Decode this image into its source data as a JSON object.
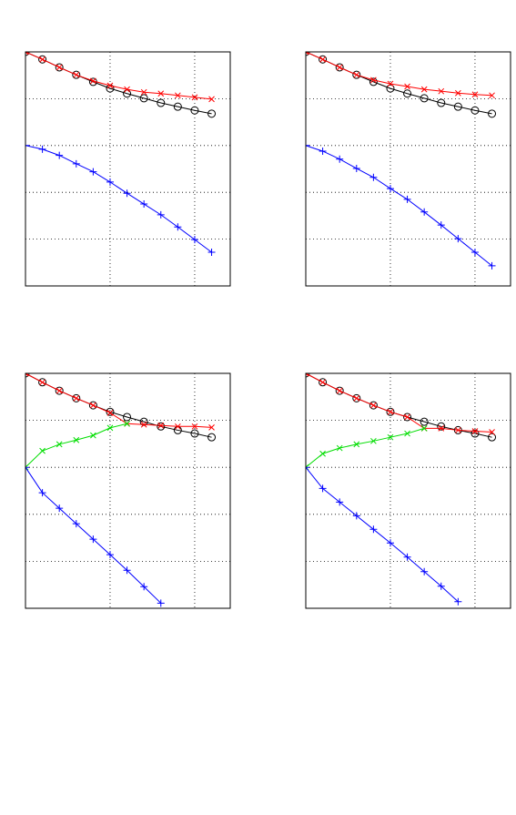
{
  "chart_data": [
    {
      "type": "line",
      "x": [
        0,
        1,
        2,
        3,
        4,
        5,
        6,
        7,
        8,
        9,
        10,
        11
      ],
      "xlim": [
        0,
        12.1
      ],
      "ylim": [
        -3,
        2
      ],
      "xticks": [
        5,
        10
      ],
      "yticks": [
        -2,
        -1,
        0,
        1
      ],
      "grid": true,
      "series": [
        {
          "color": "#000000",
          "marker": "o",
          "values": [
            2,
            1.84,
            1.67,
            1.51,
            1.36,
            1.22,
            1.11,
            1.01,
            0.91,
            0.83,
            0.75,
            0.68
          ]
        },
        {
          "color": "#ff0000",
          "marker": "x",
          "values": [
            2,
            1.84,
            1.67,
            1.51,
            1.38,
            1.28,
            1.2,
            1.14,
            1.11,
            1.07,
            1.03,
            0.99
          ]
        },
        {
          "color": "#0000ff",
          "marker": "+",
          "values": [
            0,
            -0.08,
            -0.21,
            -0.39,
            -0.56,
            -0.78,
            -1.02,
            -1.25,
            -1.48,
            -1.74,
            -2.01,
            -2.28
          ]
        }
      ]
    },
    {
      "type": "line",
      "x": [
        0,
        1,
        2,
        3,
        4,
        5,
        6,
        7,
        8,
        9,
        10,
        11
      ],
      "xlim": [
        0,
        12.1
      ],
      "ylim": [
        -3,
        2
      ],
      "xticks": [
        5,
        10
      ],
      "yticks": [
        -2,
        -1,
        0,
        1
      ],
      "grid": true,
      "series": [
        {
          "color": "#000000",
          "marker": "o",
          "values": [
            2,
            1.84,
            1.67,
            1.51,
            1.36,
            1.22,
            1.11,
            1.01,
            0.91,
            0.83,
            0.75,
            0.68
          ]
        },
        {
          "color": "#ff0000",
          "marker": "x",
          "values": [
            2,
            1.84,
            1.67,
            1.51,
            1.4,
            1.32,
            1.26,
            1.2,
            1.16,
            1.12,
            1.09,
            1.07
          ]
        },
        {
          "color": "#0000ff",
          "marker": "+",
          "values": [
            0,
            -0.12,
            -0.29,
            -0.49,
            -0.68,
            -0.92,
            -1.15,
            -1.42,
            -1.7,
            -1.99,
            -2.28,
            -2.57
          ]
        }
      ]
    },
    {
      "type": "line",
      "x": [
        0,
        1,
        2,
        3,
        4,
        5,
        6,
        7,
        8,
        9,
        10,
        11
      ],
      "xlim": [
        0,
        12.1
      ],
      "ylim": [
        -3,
        2
      ],
      "xticks": [
        5,
        10
      ],
      "yticks": [
        -2,
        -1,
        0,
        1
      ],
      "grid": true,
      "series": [
        {
          "color": "#000000",
          "marker": "o",
          "values": [
            2,
            1.81,
            1.63,
            1.47,
            1.32,
            1.18,
            1.07,
            0.97,
            0.87,
            0.79,
            0.72,
            0.64
          ]
        },
        {
          "color": "#ff0000",
          "marker": "x",
          "values": [
            2,
            1.81,
            1.63,
            1.47,
            1.32,
            1.16,
            0.93,
            0.91,
            0.89,
            0.87,
            0.87,
            0.85
          ]
        },
        {
          "color": "#00dd00",
          "marker": "x",
          "values": [
            0,
            0.35,
            0.49,
            0.58,
            0.68,
            0.84,
            0.93,
            null,
            null,
            null,
            null,
            null
          ]
        },
        {
          "color": "#0000ff",
          "marker": "+",
          "values": [
            0,
            -0.54,
            -0.87,
            -1.2,
            -1.53,
            -1.86,
            -2.19,
            -2.54,
            -2.89,
            null,
            null,
            null
          ]
        }
      ]
    },
    {
      "type": "line",
      "x": [
        0,
        1,
        2,
        3,
        4,
        5,
        6,
        7,
        8,
        9,
        10,
        11
      ],
      "xlim": [
        0,
        12.1
      ],
      "ylim": [
        -3,
        2
      ],
      "xticks": [
        5,
        10
      ],
      "yticks": [
        -2,
        -1,
        0,
        1
      ],
      "grid": true,
      "series": [
        {
          "color": "#000000",
          "marker": "o",
          "values": [
            2,
            1.81,
            1.63,
            1.47,
            1.32,
            1.18,
            1.07,
            0.97,
            0.87,
            0.79,
            0.72,
            0.64
          ]
        },
        {
          "color": "#ff0000",
          "marker": "x",
          "values": [
            2,
            1.81,
            1.63,
            1.47,
            1.32,
            1.18,
            1.07,
            0.83,
            0.83,
            0.79,
            0.77,
            0.75
          ]
        },
        {
          "color": "#00dd00",
          "marker": "x",
          "values": [
            0,
            0.29,
            0.41,
            0.49,
            0.56,
            0.64,
            0.72,
            0.83,
            null,
            null,
            null,
            null
          ]
        },
        {
          "color": "#0000ff",
          "marker": "+",
          "values": [
            0,
            -0.45,
            -0.74,
            -1.03,
            -1.32,
            -1.61,
            -1.91,
            -2.22,
            -2.53,
            -2.86,
            null,
            null
          ]
        }
      ]
    }
  ]
}
